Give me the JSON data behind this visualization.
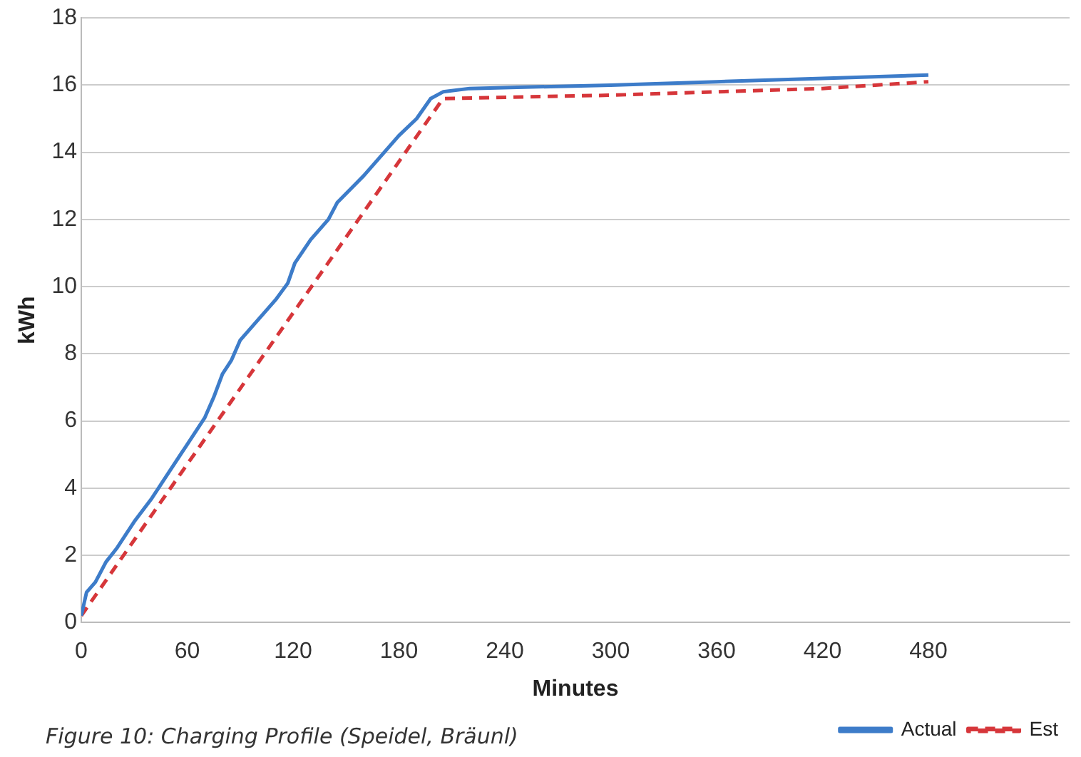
{
  "chart_data": {
    "type": "line",
    "xlabel": "Minutes",
    "ylabel": "kWh",
    "xlim": [
      0,
      560
    ],
    "xticks": [
      0,
      60,
      120,
      180,
      240,
      300,
      360,
      420,
      480
    ],
    "ylim": [
      0,
      18
    ],
    "yticks": [
      0,
      2,
      4,
      6,
      8,
      10,
      12,
      14,
      16,
      18
    ],
    "grid": "y",
    "legend": "bottom right",
    "marker": "none",
    "annotations": [
      "Figure 10: Charging Profile (Speidel, Bräunl)"
    ],
    "series": [
      {
        "name": "Actual",
        "color": "#3d7cc9",
        "line_style": "solid",
        "x": [
          0,
          3,
          8,
          14,
          20,
          30,
          40,
          50,
          60,
          70,
          75,
          80,
          85,
          90,
          100,
          110,
          117,
          121,
          130,
          140,
          145,
          160,
          170,
          180,
          190,
          198,
          205,
          220,
          300,
          360,
          420,
          480
        ],
        "values": [
          0.2,
          0.9,
          1.2,
          1.8,
          2.2,
          3.0,
          3.7,
          4.5,
          5.3,
          6.1,
          6.7,
          7.4,
          7.8,
          8.4,
          9.0,
          9.6,
          10.1,
          10.7,
          11.4,
          12.0,
          12.5,
          13.3,
          13.9,
          14.5,
          15.0,
          15.6,
          15.8,
          15.9,
          16.0,
          16.1,
          16.2,
          16.3
        ]
      },
      {
        "name": "Est",
        "color": "#d6363a",
        "line_style": "dashed",
        "x": [
          0,
          205,
          300,
          360,
          420,
          480
        ],
        "values": [
          0.2,
          15.6,
          15.7,
          15.8,
          15.9,
          16.1
        ]
      }
    ]
  }
}
